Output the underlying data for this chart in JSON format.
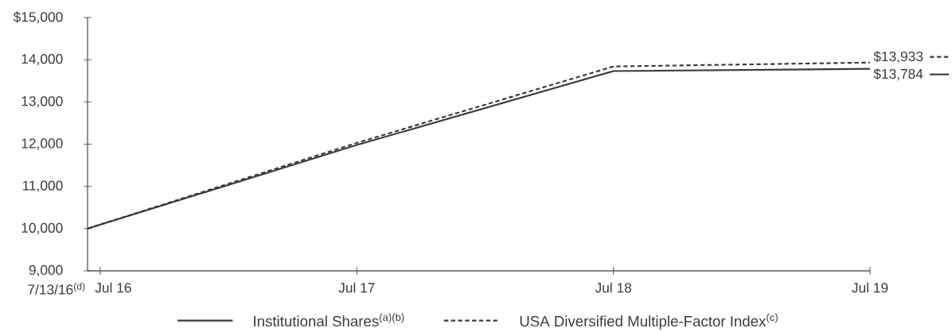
{
  "chart_data": {
    "type": "line",
    "x": [
      "2016-07-13",
      "2017-07-31",
      "2018-07-31",
      "2019-07-31"
    ],
    "series": [
      {
        "name": "Institutional Shares$^{(a)(b)}$",
        "color": "#3a3a3a",
        "line_style": "solid",
        "values": [
          10000,
          11980,
          13730,
          13784
        ],
        "value_labels": [
          null,
          null,
          null,
          "$13,784"
        ]
      },
      {
        "name": "USA Diversified Multiple-Factor Index$^{(c)}$",
        "color": "#3a3a3a",
        "line_style": "dashed",
        "values": [
          10000,
          12030,
          13840,
          13933
        ],
        "value_labels": [
          null,
          null,
          null,
          "$13,933"
        ]
      }
    ],
    "xlim": [
      "2016-07-13",
      "2019-07-31"
    ],
    "xticks": [
      {
        "value": "2016-07-31",
        "label": "Jul 16"
      },
      {
        "value": "2017-07-31",
        "label": "Jul 17"
      },
      {
        "value": "2018-07-31",
        "label": "Jul 18"
      },
      {
        "value": "2019-07-31",
        "label": "Jul 19"
      }
    ],
    "ylim": [
      9000,
      15000
    ],
    "yticks": [
      {
        "value": 9000,
        "label": "9,000"
      },
      {
        "value": 10000,
        "label": "10,000"
      },
      {
        "value": 11000,
        "label": "11,000"
      },
      {
        "value": 12000,
        "label": "12,000"
      },
      {
        "value": 13000,
        "label": "13,000"
      },
      {
        "value": 14000,
        "label": "14,000"
      },
      {
        "value": 15000,
        "label": "$15,000"
      }
    ],
    "annotations": [
      "7/13/16$^{(d)}$"
    ],
    "legend": "bottom"
  }
}
